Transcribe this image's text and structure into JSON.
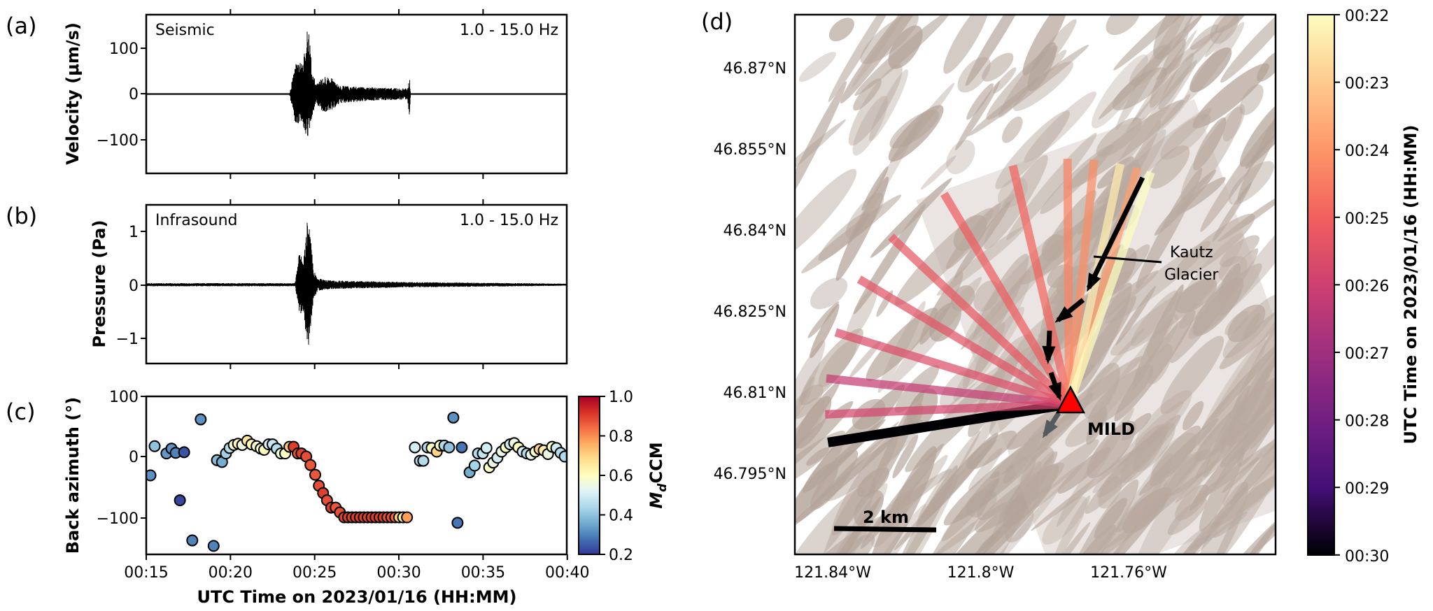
{
  "chart_data": [
    {
      "panel": "(a)",
      "type": "line",
      "annotation_left": "Seismic",
      "annotation_right": "1.0 - 15.0 Hz",
      "ylabel": "Velocity (μm/s)",
      "yticks": [
        "100",
        "0",
        "−100"
      ],
      "ylim": [
        -172,
        172
      ],
      "xlim": [
        "00:15",
        "00:40"
      ],
      "envelope": {
        "time": [
          "00:23:30",
          "00:23:50",
          "00:24:20",
          "00:24:36",
          "00:24:50",
          "00:25:05",
          "00:25:30",
          "00:26:00",
          "00:26:30",
          "00:28:00",
          "00:30:30",
          "00:30:38",
          "00:30:42"
        ],
        "max": [
          0,
          65,
          70,
          160,
          60,
          20,
          40,
          35,
          18,
          15,
          12,
          35,
          0
        ],
        "min": [
          0,
          -65,
          -70,
          -105,
          -50,
          -20,
          -40,
          -35,
          -20,
          -15,
          -12,
          -48,
          0
        ]
      }
    },
    {
      "panel": "(b)",
      "type": "line",
      "annotation_left": "Infrasound",
      "annotation_right": "1.0 - 15.0 Hz",
      "ylabel": "Pressure (Pa)",
      "yticks": [
        "1",
        "0",
        "−1"
      ],
      "ylim": [
        -1.48,
        1.5
      ],
      "xlim": [
        "00:15",
        "00:40"
      ],
      "envelope": {
        "time": [
          "00:15:00",
          "00:23:50",
          "00:24:05",
          "00:24:20",
          "00:24:36",
          "00:24:45",
          "00:24:55",
          "00:25:10",
          "00:26:00",
          "00:30:30",
          "00:40:00"
        ],
        "max": [
          0.03,
          0.03,
          0.6,
          0.45,
          1.35,
          0.95,
          0.3,
          0.12,
          0.08,
          0.05,
          0.02
        ],
        "min": [
          -0.03,
          -0.03,
          -0.5,
          -0.6,
          -1.22,
          -0.9,
          -0.3,
          -0.12,
          -0.08,
          -0.05,
          -0.02
        ]
      }
    },
    {
      "panel": "(c)",
      "type": "scatter",
      "ylabel": "Back azimuth (°)",
      "xlabel": "UTC Time on 2023/01/16 (HH:MM)",
      "xticks": [
        "00:15",
        "00:20",
        "00:25",
        "00:30",
        "00:35",
        "00:40"
      ],
      "yticks": [
        "100",
        "0",
        "−100"
      ],
      "ylim": [
        -161,
        100
      ],
      "xlim": [
        "00:15",
        "00:40"
      ],
      "colorbar": {
        "label_main": "M",
        "label_sub": "d",
        "label_rest": "CCM",
        "range": [
          0.2,
          1.0
        ],
        "ticks": [
          "0.2",
          "0.4",
          "0.6",
          "0.8",
          "1.0"
        ],
        "colormap": [
          "#313695",
          "#4575b4",
          "#74add1",
          "#abd9e9",
          "#e0f3f8",
          "#ffffbf",
          "#fee090",
          "#fdae61",
          "#f46d43",
          "#d73027",
          "#a50026"
        ]
      },
      "points": [
        [
          "00:15:15",
          -31,
          0.32
        ],
        [
          "00:15:30",
          17,
          0.4
        ],
        [
          "00:16:12",
          5,
          0.33
        ],
        [
          "00:16:30",
          13,
          0.32
        ],
        [
          "00:16:45",
          6,
          0.3
        ],
        [
          "00:17:00",
          -72,
          0.22
        ],
        [
          "00:17:15",
          7,
          0.24
        ],
        [
          "00:17:44",
          -138,
          0.3
        ],
        [
          "00:18:14",
          61,
          0.32
        ],
        [
          "00:19:00",
          -147,
          0.3
        ],
        [
          "00:19:12",
          -6,
          0.38
        ],
        [
          "00:19:30",
          -9,
          0.36
        ],
        [
          "00:19:44",
          5,
          0.42
        ],
        [
          "00:19:57",
          14,
          0.45
        ],
        [
          "00:20:12",
          19,
          0.58
        ],
        [
          "00:20:27",
          21,
          0.62
        ],
        [
          "00:20:42",
          19,
          0.56
        ],
        [
          "00:21:00",
          26,
          0.66
        ],
        [
          "00:21:15",
          20,
          0.62
        ],
        [
          "00:21:33",
          17,
          0.58
        ],
        [
          "00:21:48",
          13,
          0.6
        ],
        [
          "00:22:00",
          11,
          0.6
        ],
        [
          "00:22:16",
          20,
          0.52
        ],
        [
          "00:22:30",
          20,
          0.48
        ],
        [
          "00:22:45",
          13,
          0.45
        ],
        [
          "00:23:00",
          5,
          0.56
        ],
        [
          "00:23:15",
          5,
          0.6
        ],
        [
          "00:23:30",
          16,
          0.72
        ],
        [
          "00:23:45",
          16,
          0.9
        ],
        [
          "00:24:00",
          5,
          0.88
        ],
        [
          "00:24:13",
          5,
          0.9
        ],
        [
          "00:24:30",
          0,
          0.88
        ],
        [
          "00:24:45",
          -14,
          0.87
        ],
        [
          "00:25:02",
          -30,
          0.87
        ],
        [
          "00:25:15",
          -48,
          0.88
        ],
        [
          "00:25:30",
          -60,
          0.9
        ],
        [
          "00:25:44",
          -72,
          0.88
        ],
        [
          "00:25:59",
          -84,
          0.9
        ],
        [
          "00:26:15",
          -84,
          0.87
        ],
        [
          "00:26:30",
          -92,
          0.88
        ],
        [
          "00:26:45",
          -100,
          0.9
        ],
        [
          "00:26:59",
          -100,
          0.9
        ],
        [
          "00:27:13",
          -100,
          0.9
        ],
        [
          "00:27:27",
          -100,
          0.9
        ],
        [
          "00:27:41",
          -100,
          0.9
        ],
        [
          "00:27:55",
          -100,
          0.9
        ],
        [
          "00:28:09",
          -100,
          0.9
        ],
        [
          "00:28:23",
          -100,
          0.9
        ],
        [
          "00:28:37",
          -100,
          0.9
        ],
        [
          "00:28:51",
          -100,
          0.9
        ],
        [
          "00:29:05",
          -100,
          0.9
        ],
        [
          "00:29:19",
          -100,
          0.88
        ],
        [
          "00:29:33",
          -100,
          0.88
        ],
        [
          "00:29:47",
          -100,
          0.85
        ],
        [
          "00:30:01",
          -100,
          0.7
        ],
        [
          "00:30:15",
          -100,
          0.65
        ],
        [
          "00:30:29",
          -100,
          0.78
        ],
        [
          "00:30:57",
          15,
          0.5
        ],
        [
          "00:31:15",
          -7,
          0.45
        ],
        [
          "00:31:27",
          -7,
          0.45
        ],
        [
          "00:31:42",
          15,
          0.45
        ],
        [
          "00:31:57",
          14,
          0.6
        ],
        [
          "00:32:15",
          8,
          0.7
        ],
        [
          "00:32:27",
          18,
          0.6
        ],
        [
          "00:32:42",
          18,
          0.45
        ],
        [
          "00:32:59",
          15,
          0.4
        ],
        [
          "00:33:14",
          64,
          0.32
        ],
        [
          "00:33:29",
          -109,
          0.28
        ],
        [
          "00:33:44",
          15,
          0.28
        ],
        [
          "00:34:12",
          -26,
          0.36
        ],
        [
          "00:34:30",
          -15,
          0.43
        ],
        [
          "00:34:42",
          5,
          0.45
        ],
        [
          "00:34:59",
          5,
          0.47
        ],
        [
          "00:35:12",
          14,
          0.5
        ],
        [
          "00:35:22",
          -18,
          0.6
        ],
        [
          "00:35:36",
          -10,
          0.55
        ],
        [
          "00:35:51",
          -2,
          0.5
        ],
        [
          "00:36:06",
          8,
          0.55
        ],
        [
          "00:36:21",
          15,
          0.6
        ],
        [
          "00:36:36",
          20,
          0.5
        ],
        [
          "00:36:51",
          22,
          0.55
        ],
        [
          "00:37:06",
          15,
          0.6
        ],
        [
          "00:37:21",
          8,
          0.5
        ],
        [
          "00:37:36",
          5,
          0.45
        ],
        [
          "00:37:51",
          3,
          0.55
        ],
        [
          "00:38:06",
          8,
          0.6
        ],
        [
          "00:38:21",
          12,
          0.7
        ],
        [
          "00:38:36",
          10,
          0.65
        ],
        [
          "00:38:51",
          4,
          0.55
        ],
        [
          "00:39:06",
          16,
          0.6
        ],
        [
          "00:39:21",
          14,
          0.5
        ],
        [
          "00:39:36",
          6,
          0.45
        ],
        [
          "00:39:51",
          0,
          0.45
        ]
      ]
    },
    {
      "panel": "(d)",
      "type": "map",
      "lat_ticks": [
        "46.87°N",
        "46.855°N",
        "46.84°N",
        "46.825°N",
        "46.81°N",
        "46.795°N"
      ],
      "lon_ticks": [
        "121.84°W",
        "121.8°W",
        "121.76°W"
      ],
      "station": {
        "name": "MILD",
        "lat": 46.8078,
        "lon": -121.7757,
        "color": "#ff0000"
      },
      "feature_label": [
        "Kautz",
        "Glacier"
      ],
      "scale_bar": "2 km",
      "colorbar": {
        "label": "UTC Time on 2023/01/16 (HH:MM)",
        "ticks": [
          "00:22",
          "00:23",
          "00:24",
          "00:25",
          "00:26",
          "00:27",
          "00:28",
          "00:29",
          "00:30"
        ],
        "colormap": [
          "#fcfdbf",
          "#feca8d",
          "#fd9668",
          "#f1605d",
          "#cd4071",
          "#9e2f7f",
          "#721f81",
          "#440f76",
          "#000004"
        ]
      },
      "beams": [
        {
          "time": "00:22:00",
          "backazimuth": 19.1
        },
        {
          "time": "00:22:20",
          "backazimuth": 11.7
        },
        {
          "time": "00:23:50",
          "backazimuth": 15.8
        },
        {
          "time": "00:24:10",
          "backazimuth": 5.5
        },
        {
          "time": "00:24:20",
          "backazimuth": 359.3
        },
        {
          "time": "00:24:55",
          "backazimuth": 346.4
        },
        {
          "time": "00:25:05",
          "backazimuth": 329
        },
        {
          "time": "00:25:15",
          "backazimuth": 313
        },
        {
          "time": "00:25:25",
          "backazimuth": 300.6
        },
        {
          "time": "00:25:35",
          "backazimuth": 287
        },
        {
          "time": "00:25:50",
          "backazimuth": 267.6
        },
        {
          "time": "00:26:10",
          "backazimuth": 276
        },
        {
          "time": "00:30:00",
          "backazimuth": 261
        }
      ]
    }
  ]
}
